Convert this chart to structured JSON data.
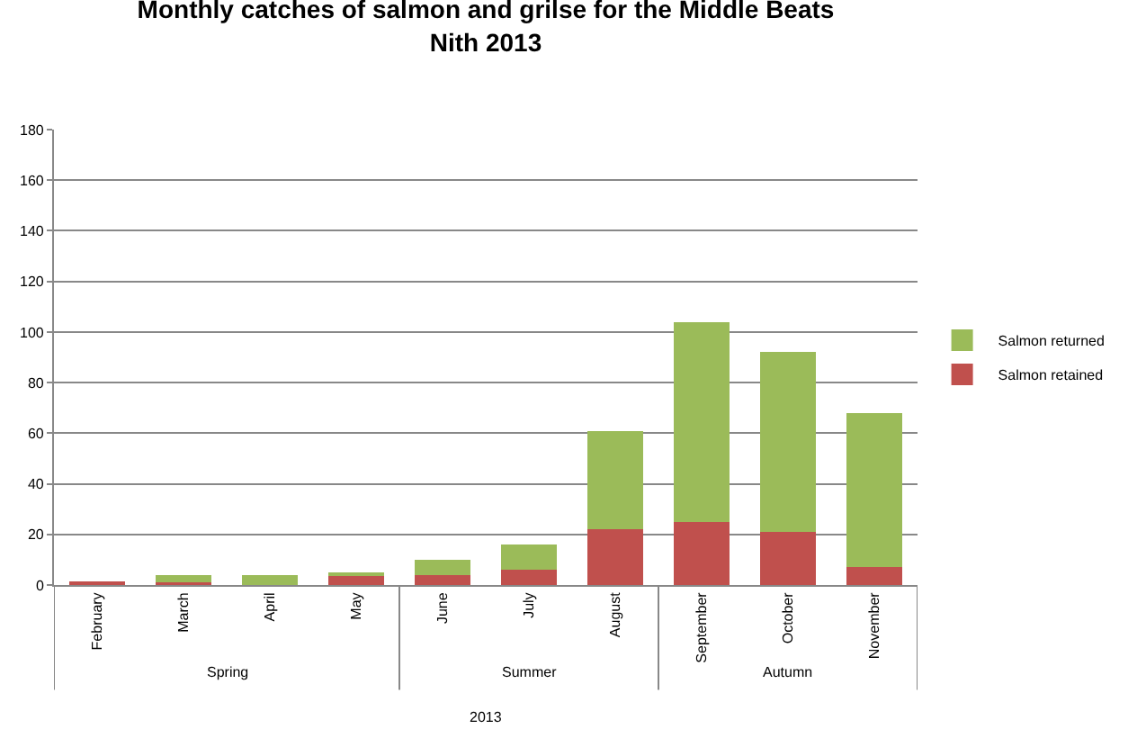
{
  "chart_data": {
    "type": "bar",
    "title": "Monthly catches of salmon and grilse for the Middle Beats\nNith 2013",
    "categories": [
      "February",
      "March",
      "April",
      "May",
      "June",
      "July",
      "August",
      "September",
      "October",
      "November"
    ],
    "series": [
      {
        "name": "Salmon retained",
        "color": "#c0504d",
        "values": [
          1,
          1,
          0,
          4,
          4,
          6,
          22,
          25,
          21,
          7
        ]
      },
      {
        "name": "Salmon returned",
        "color": "#9bbb59",
        "values": [
          0,
          3,
          4,
          1,
          6,
          10,
          39,
          79,
          71,
          61
        ]
      }
    ],
    "stacked": true,
    "ylim": [
      0,
      180
    ],
    "yticks": [
      0,
      20,
      40,
      60,
      80,
      100,
      120,
      140,
      160,
      180
    ],
    "grid": "y",
    "legend": "right",
    "xlabel": "2013",
    "annotations": [
      "Spring",
      "Summer",
      "Autumn"
    ]
  }
}
